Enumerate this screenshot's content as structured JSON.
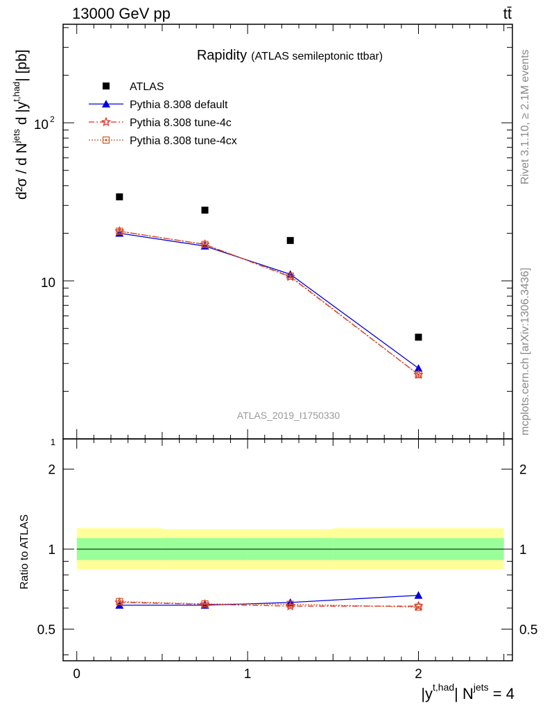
{
  "header": {
    "energy": "13000 GeV pp",
    "process": "tt̄"
  },
  "side_labels": {
    "rivet": "Rivet 3.1.10, ≥ 2.1M events",
    "mcplots": "mcplots.cern.ch [arXiv:1306.3436]"
  },
  "title": {
    "main": "Rapidity",
    "sub": "(ATLAS semileptonic ttbar)"
  },
  "watermark": "ATLAS_2019_I1750330",
  "main_axes": {
    "ylabel_main": "d²σ / d N",
    "ylabel_sup1": "jets",
    "ylabel_mid": " d |y",
    "ylabel_sup2": "t,had",
    "ylabel_end": "| [pb]",
    "ytick_labels": {
      "one": "1",
      "ten": "10",
      "hundred_base": "10",
      "hundred_exp": "2"
    }
  },
  "ratio_axes": {
    "ylabel": "Ratio to ATLAS",
    "ytick_labels": [
      "0.5",
      "1",
      "2"
    ]
  },
  "xaxis": {
    "tick_labels": [
      "0",
      "1",
      "2"
    ],
    "label_main": "|y",
    "label_sup1": "t,had",
    "label_mid": "| N",
    "label_sup2": "jets",
    "label_end": " = 4"
  },
  "legend": [
    {
      "name": "ATLAS",
      "style": "data"
    },
    {
      "name": "Pythia 8.308 default",
      "style": "default"
    },
    {
      "name": "Pythia 8.308 tune-4c",
      "style": "tune4c"
    },
    {
      "name": "Pythia 8.308 tune-4cx",
      "style": "tune4cx"
    }
  ],
  "colors": {
    "data": "#000000",
    "default": "#0000dd",
    "tune4c": "#dd2a22",
    "tune4cx": "#cc5522",
    "band_outer": "#ffff99",
    "band_inner": "#99ff99"
  },
  "chart_data": {
    "type": "line",
    "x": [
      0.25,
      0.75,
      1.25,
      2.0
    ],
    "xlim": [
      -0.08,
      2.55
    ],
    "ylim": [
      1.0,
      420
    ],
    "log_y": true,
    "series": [
      {
        "name": "ATLAS",
        "values": [
          34,
          28,
          18,
          4.4
        ]
      },
      {
        "name": "Pythia 8.308 default",
        "values": [
          20.0,
          16.6,
          11.0,
          2.8
        ]
      },
      {
        "name": "Pythia 8.308 tune-4c",
        "values": [
          20.6,
          17.0,
          10.6,
          2.55
        ]
      },
      {
        "name": "Pythia 8.308 tune-4cx",
        "values": [
          20.6,
          17.0,
          10.7,
          2.55
        ]
      }
    ],
    "ratio": {
      "ylim": [
        0.38,
        2.6
      ],
      "series": [
        {
          "name": "Pythia 8.308 default",
          "values": [
            0.615,
            0.615,
            0.63,
            0.67
          ]
        },
        {
          "name": "Pythia 8.308 tune-4c",
          "values": [
            0.63,
            0.62,
            0.61,
            0.61
          ]
        },
        {
          "name": "Pythia 8.308 tune-4cx",
          "values": [
            0.635,
            0.622,
            0.62,
            0.605
          ]
        }
      ],
      "bands": [
        {
          "xmin": 0.0,
          "xmax": 0.5,
          "outer": [
            0.84,
            1.2
          ],
          "inner": [
            0.91,
            1.1
          ]
        },
        {
          "xmin": 0.5,
          "xmax": 1.0,
          "outer": [
            0.84,
            1.19
          ],
          "inner": [
            0.91,
            1.1
          ]
        },
        {
          "xmin": 1.0,
          "xmax": 1.5,
          "outer": [
            0.84,
            1.19
          ],
          "inner": [
            0.91,
            1.1
          ]
        },
        {
          "xmin": 1.5,
          "xmax": 2.5,
          "outer": [
            0.84,
            1.2
          ],
          "inner": [
            0.91,
            1.1
          ]
        }
      ]
    }
  }
}
